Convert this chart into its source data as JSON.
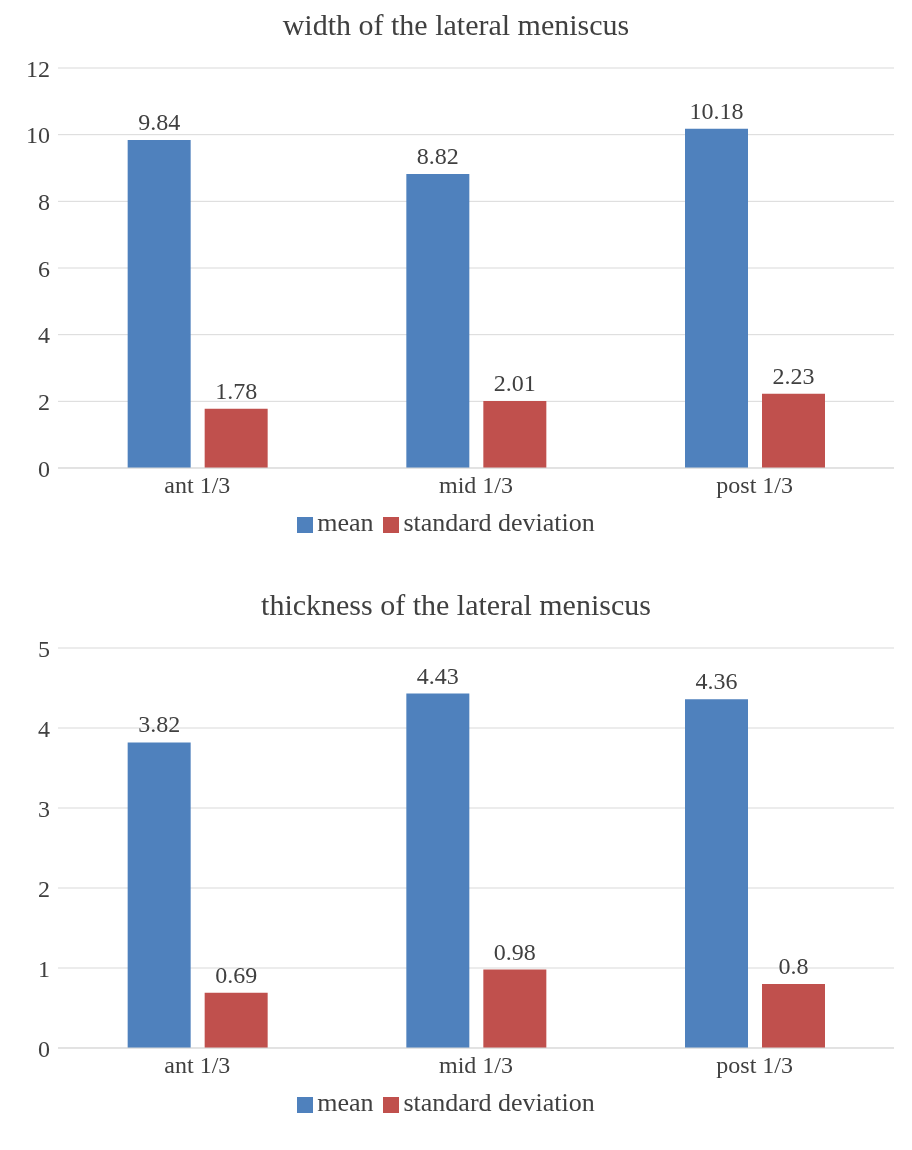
{
  "chart_data": [
    {
      "type": "bar",
      "title": "width of the lateral meniscus",
      "categories": [
        "ant 1/3",
        "mid 1/3",
        "post 1/3"
      ],
      "series": [
        {
          "name": "mean",
          "color": "#4f81bd",
          "values": [
            9.84,
            8.82,
            10.18
          ]
        },
        {
          "name": "standard deviation",
          "color": "#c0504d",
          "values": [
            1.78,
            2.01,
            2.23
          ]
        }
      ],
      "ylim": [
        0,
        12
      ],
      "yticks": [
        0,
        2,
        4,
        6,
        8,
        10,
        12
      ],
      "grid": "y",
      "legend": "bottom",
      "data_labels": true
    },
    {
      "type": "bar",
      "title": "thickness of the lateral meniscus",
      "categories": [
        "ant 1/3",
        "mid 1/3",
        "post 1/3"
      ],
      "series": [
        {
          "name": "mean",
          "color": "#4f81bd",
          "values": [
            3.82,
            4.43,
            4.36
          ]
        },
        {
          "name": "standard deviation",
          "color": "#c0504d",
          "values": [
            0.69,
            0.98,
            0.8
          ]
        }
      ],
      "ylim": [
        0,
        5
      ],
      "yticks": [
        0,
        1,
        2,
        3,
        4,
        5
      ],
      "grid": "y",
      "legend": "bottom",
      "data_labels": true
    }
  ]
}
